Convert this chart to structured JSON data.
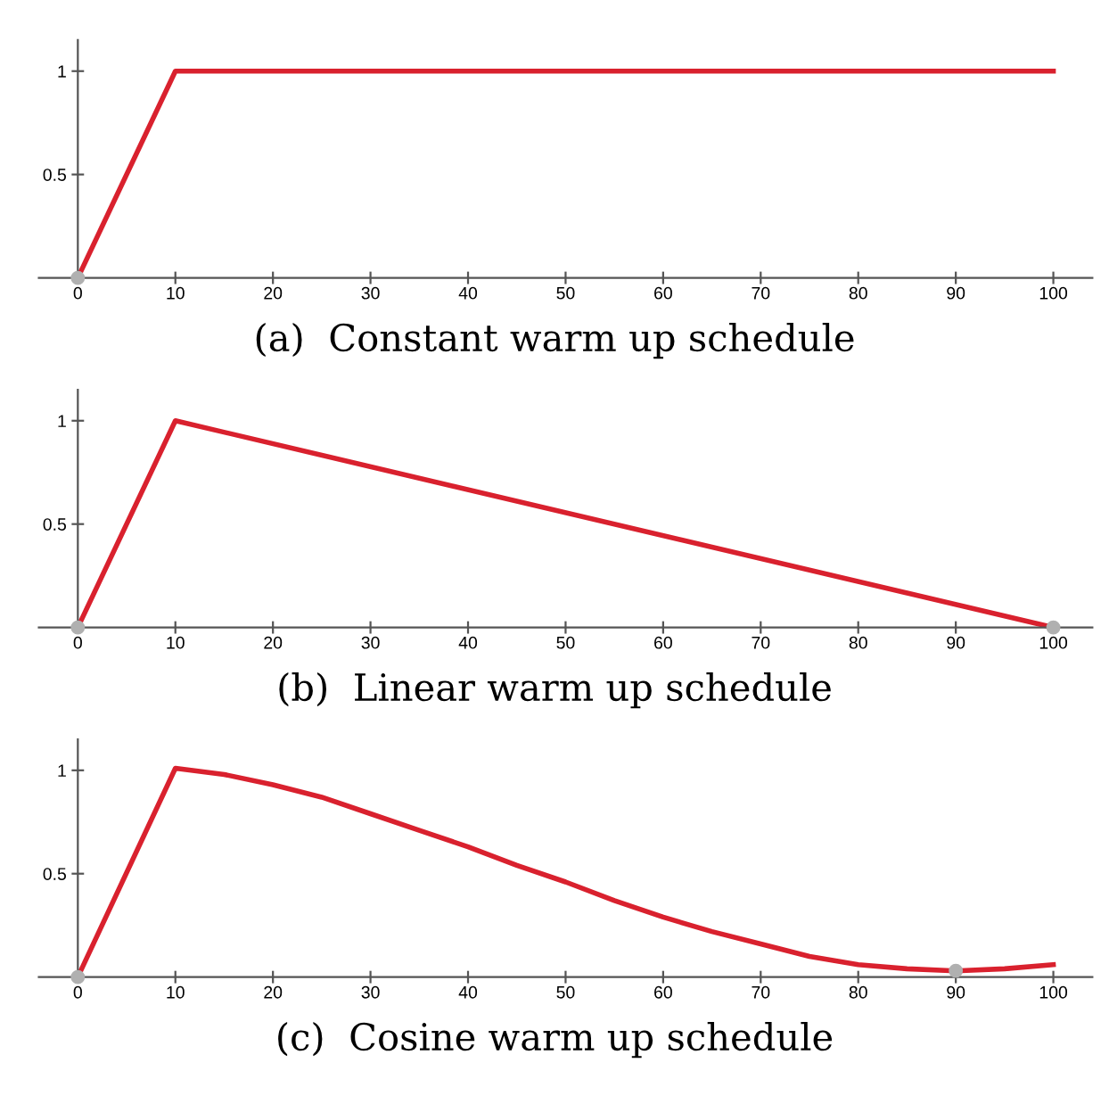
{
  "chart_data": [
    {
      "type": "line",
      "xlabel": "(a)  Constant warm up schedule",
      "xlim": [
        -4,
        104
      ],
      "ylim": [
        0,
        1.15
      ],
      "xticks": [
        0,
        10,
        20,
        30,
        40,
        50,
        60,
        70,
        80,
        90,
        100
      ],
      "yticks": [
        0.5,
        1
      ],
      "series": [
        {
          "color": "#d9212e",
          "x": [
            0,
            10,
            100
          ],
          "values": [
            0,
            1,
            1
          ]
        },
        {
          "type": "scatter",
          "color": "#b0b0b0",
          "marker": "circle",
          "x": [
            0
          ],
          "values": [
            0
          ]
        }
      ]
    },
    {
      "type": "line",
      "xlabel": "(b)  Linear warm up schedule",
      "xlim": [
        -4,
        104
      ],
      "ylim": [
        0,
        1.15
      ],
      "xticks": [
        0,
        10,
        20,
        30,
        40,
        50,
        60,
        70,
        80,
        90,
        100
      ],
      "yticks": [
        0.5,
        1
      ],
      "series": [
        {
          "color": "#d9212e",
          "x": [
            0,
            10,
            100
          ],
          "values": [
            0,
            1,
            0
          ]
        },
        {
          "type": "scatter",
          "color": "#b0b0b0",
          "marker": "circle",
          "x": [
            0,
            100
          ],
          "values": [
            0,
            0
          ]
        }
      ]
    },
    {
      "type": "line",
      "xlabel": "(c)  Cosine warm up schedule",
      "xlim": [
        -4,
        104
      ],
      "ylim": [
        0,
        1.15
      ],
      "xticks": [
        0,
        10,
        20,
        30,
        40,
        50,
        60,
        70,
        80,
        90,
        100
      ],
      "yticks": [
        0.5,
        1
      ],
      "series": [
        {
          "color": "#d9212e",
          "x": [
            0,
            10,
            15,
            20,
            25,
            30,
            35,
            40,
            45,
            50,
            55,
            60,
            65,
            70,
            75,
            80,
            85,
            90,
            95,
            100
          ],
          "values": [
            0,
            1.01,
            0.98,
            0.93,
            0.87,
            0.79,
            0.71,
            0.63,
            0.54,
            0.46,
            0.37,
            0.29,
            0.22,
            0.16,
            0.1,
            0.06,
            0.04,
            0.03,
            0.04,
            0.06
          ]
        },
        {
          "type": "scatter",
          "color": "#b0b0b0",
          "marker": "circle",
          "x": [
            0,
            90
          ],
          "values": [
            0,
            0.03
          ]
        }
      ]
    }
  ]
}
